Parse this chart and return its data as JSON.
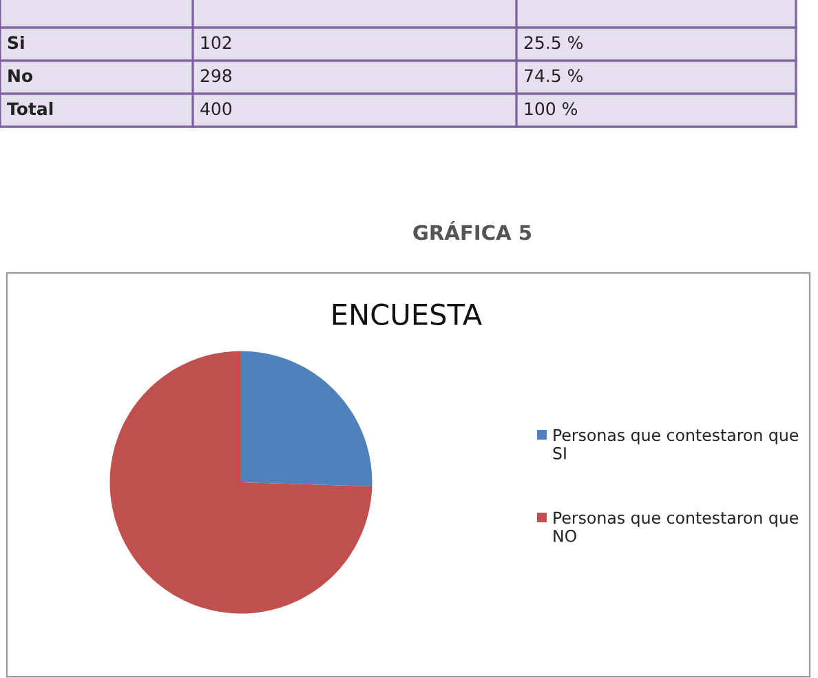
{
  "chart_data": [
    {
      "type": "other",
      "annotations": [
        "Si",
        "102",
        "25.5 %",
        "No",
        "298",
        "74.5 %",
        "Total",
        "400",
        "100 %"
      ]
    },
    {
      "type": "pie",
      "title": "ENCUESTA",
      "categories": [
        "Personas que contestaron que SI",
        "Personas que contestaron que NO"
      ],
      "values": [
        25.5,
        74.5
      ],
      "colors": [
        "#4f81bd",
        "#c0504d"
      ],
      "legend": "right",
      "annotations": [
        "GRÁFICA 5"
      ]
    }
  ]
}
